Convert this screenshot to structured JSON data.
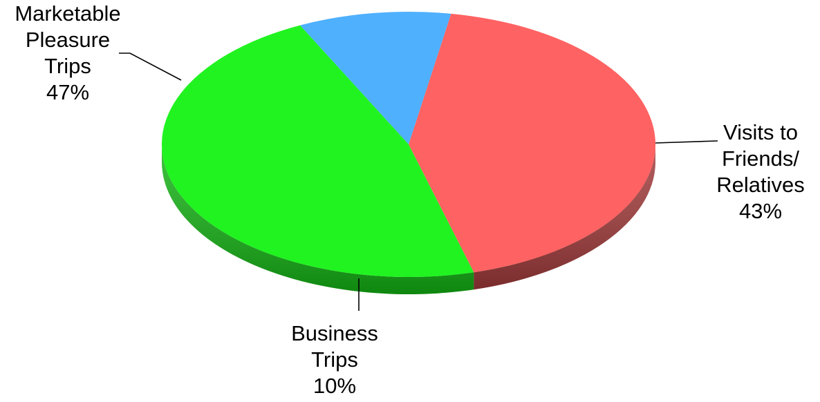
{
  "chart_data": {
    "type": "pie",
    "title": "",
    "style": "3d-tilted",
    "slices": [
      {
        "label_lines": [
          "Visits to",
          "Friends/",
          "Relatives"
        ],
        "value": 43,
        "value_label": "43%",
        "color": "#ff6262",
        "side_color": "#a23a3a"
      },
      {
        "label_lines": [
          "Business",
          "Trips"
        ],
        "value": 10,
        "value_label": "10%",
        "color": "#4fb0fd",
        "side_color": "#3178ad"
      },
      {
        "label_lines": [
          "Marketable",
          "Pleasure",
          "Trips"
        ],
        "value": 47,
        "value_label": "47%",
        "color": "#21f321",
        "side_color": "#14b414"
      }
    ]
  }
}
